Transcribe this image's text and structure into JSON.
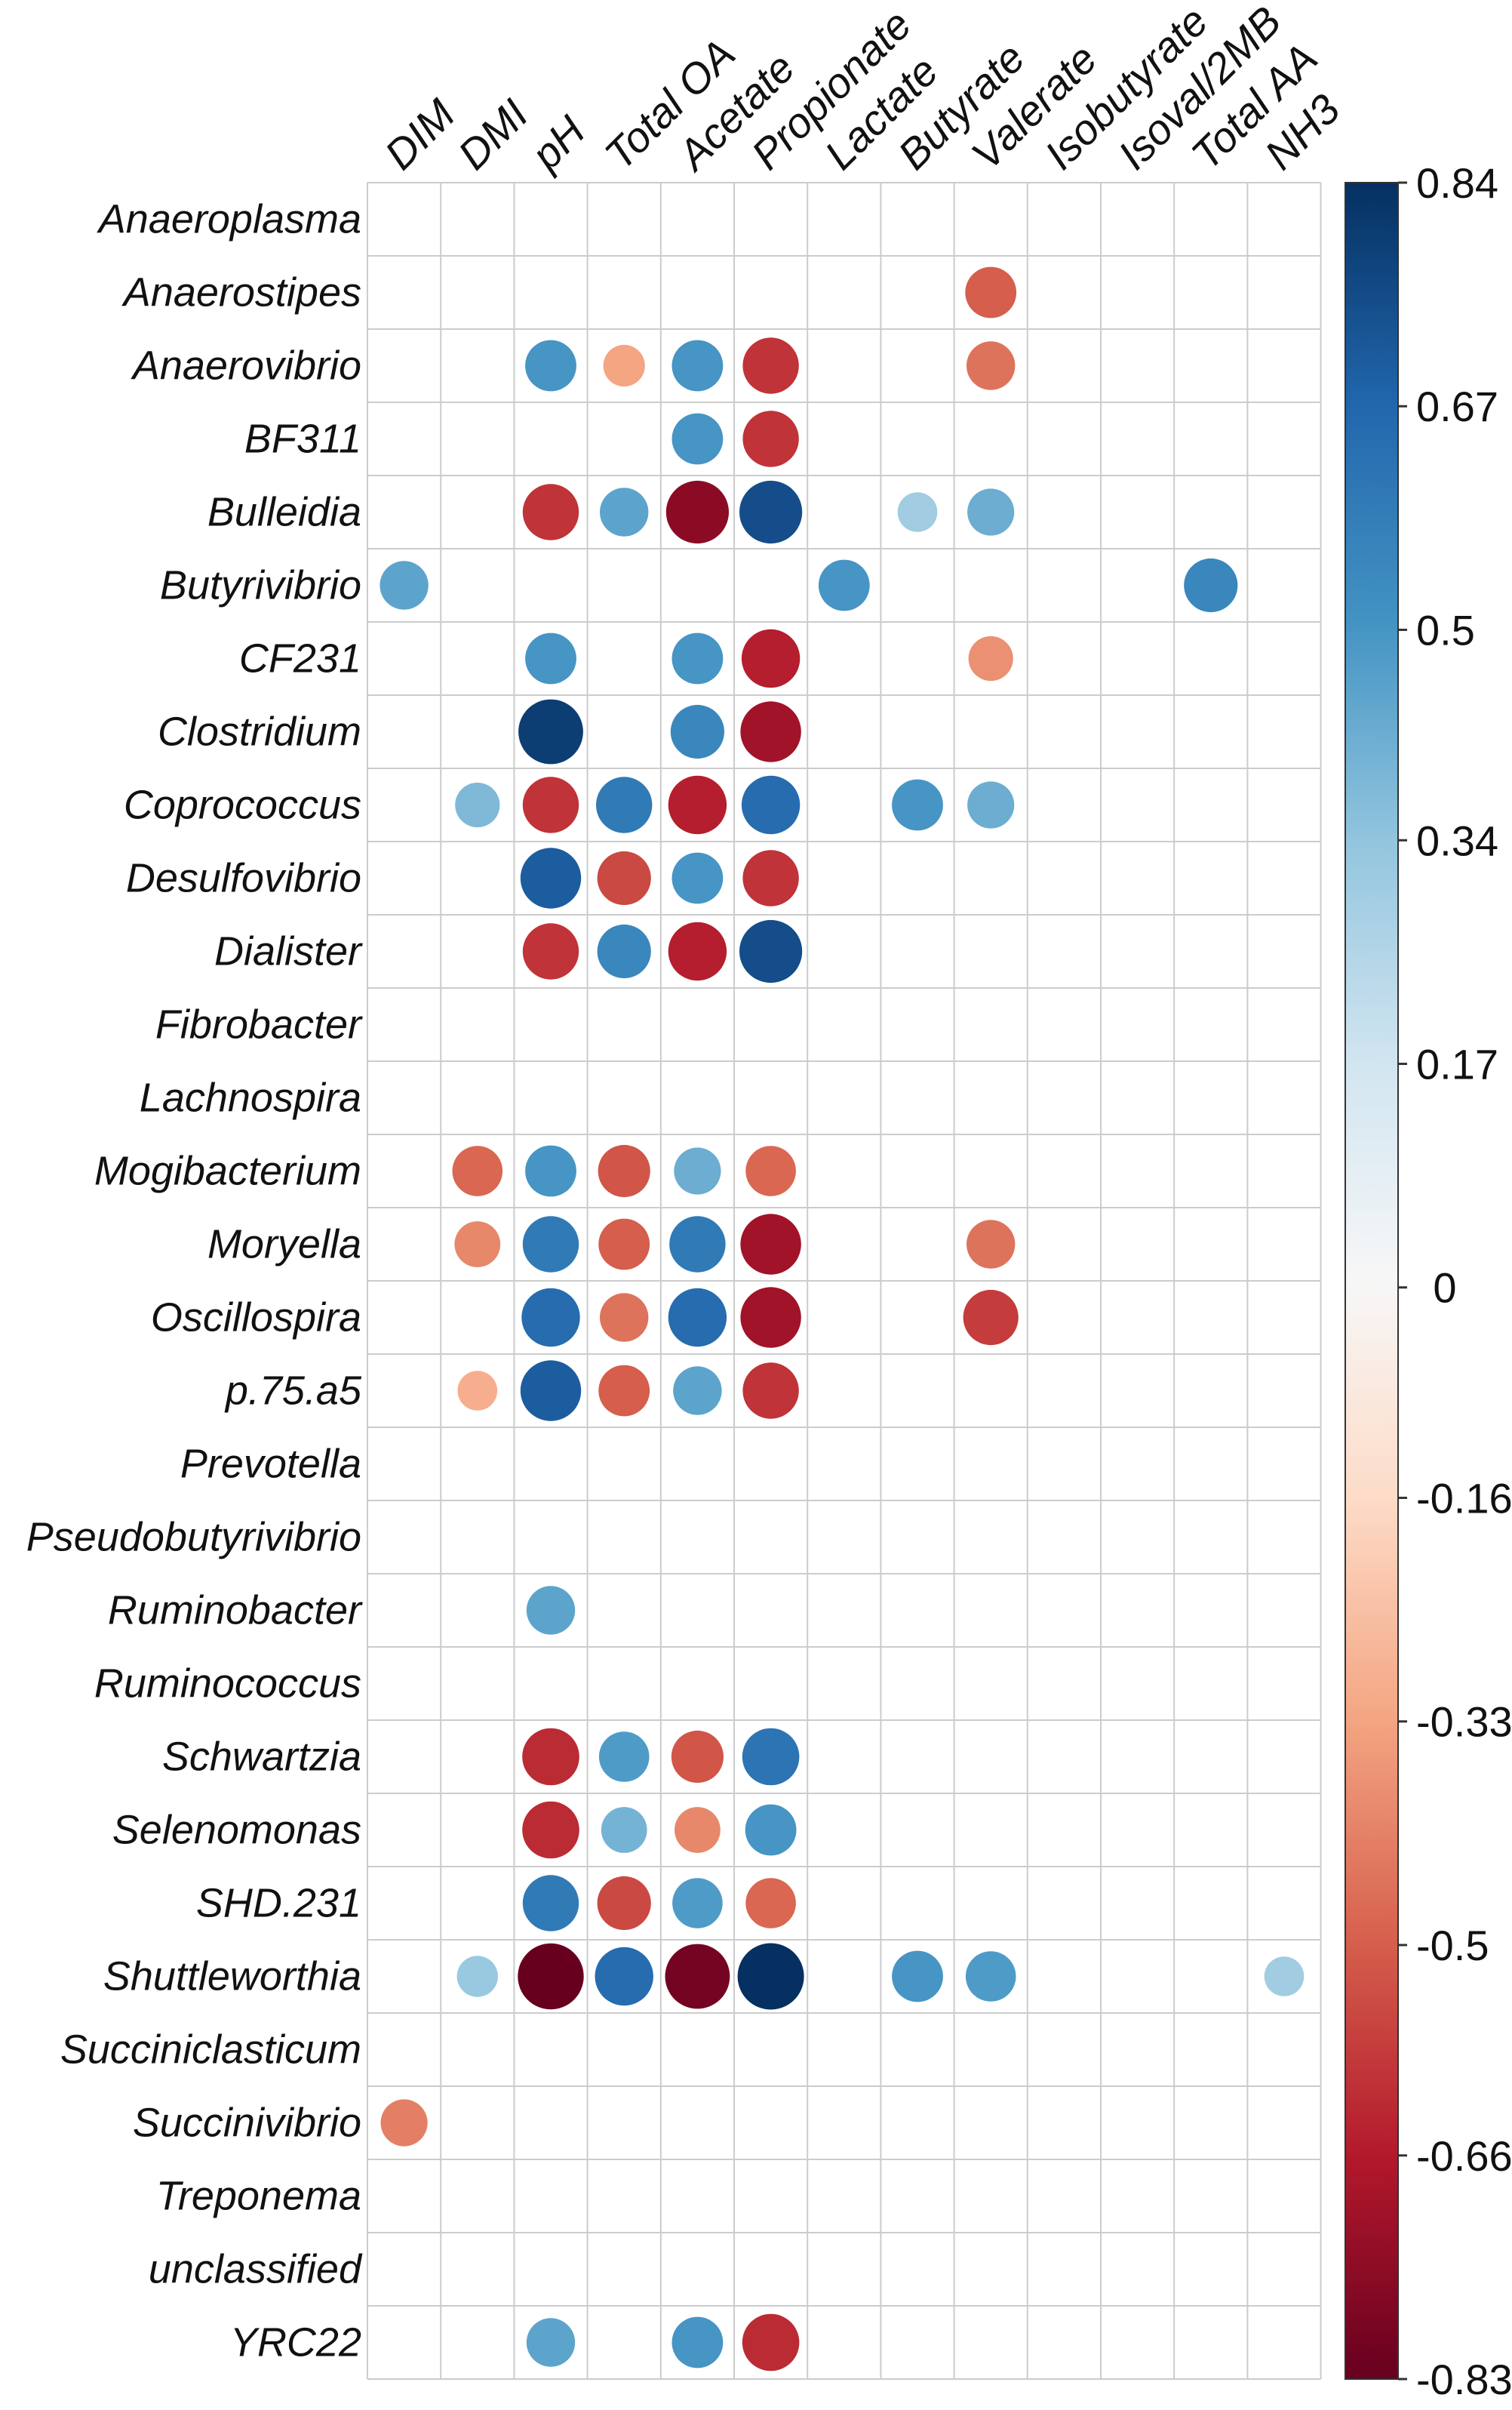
{
  "chart_data": {
    "type": "heatmap",
    "subtype": "correlation-circles",
    "title": "",
    "columns": [
      "DIM",
      "DMI",
      "pH",
      "Total OA",
      "Acetate",
      "Propionate",
      "Lactate",
      "Butyrate",
      "Valerate",
      "Isobutyrate",
      "Isoval/2MB",
      "Total AA",
      "NH3"
    ],
    "rows": [
      "Anaeroplasma",
      "Anaerostipes",
      "Anaerovibrio",
      "BF311",
      "Bulleidia",
      "Butyrivibrio",
      "CF231",
      "Clostridium",
      "Coprococcus",
      "Desulfovibrio",
      "Dialister",
      "Fibrobacter",
      "Lachnospira",
      "Mogibacterium",
      "Moryella",
      "Oscillospira",
      "p.75.a5",
      "Prevotella",
      "Pseudobutyrivibrio",
      "Ruminobacter",
      "Ruminococcus",
      "Schwartzia",
      "Selenomonas",
      "SHD.231",
      "Shuttleworthia",
      "Succiniclasticum",
      "Succinivibrio",
      "Treponema",
      "unclassified",
      "YRC22"
    ],
    "values": [
      [
        null,
        null,
        null,
        null,
        null,
        null,
        null,
        null,
        null,
        null,
        null,
        null,
        null
      ],
      [
        null,
        null,
        null,
        null,
        null,
        null,
        null,
        null,
        -0.5,
        null,
        null,
        null,
        null
      ],
      [
        null,
        null,
        0.5,
        -0.33,
        0.5,
        -0.6,
        null,
        null,
        -0.45,
        null,
        null,
        null,
        null
      ],
      [
        null,
        null,
        null,
        null,
        0.5,
        -0.6,
        null,
        null,
        null,
        null,
        null,
        null,
        null
      ],
      [
        null,
        null,
        -0.6,
        0.45,
        -0.75,
        0.75,
        null,
        0.3,
        0.42,
        null,
        null,
        null,
        null
      ],
      [
        0.45,
        null,
        null,
        null,
        null,
        null,
        0.5,
        null,
        null,
        null,
        null,
        0.55,
        null
      ],
      [
        null,
        null,
        0.5,
        null,
        0.5,
        -0.65,
        null,
        null,
        -0.38,
        null,
        null,
        null,
        null
      ],
      [
        null,
        null,
        0.8,
        null,
        0.55,
        -0.7,
        null,
        null,
        null,
        null,
        null,
        null,
        null
      ],
      [
        null,
        0.38,
        -0.6,
        0.6,
        -0.65,
        0.65,
        null,
        0.5,
        0.42,
        null,
        null,
        null,
        null
      ],
      [
        null,
        null,
        0.7,
        -0.55,
        0.5,
        -0.6,
        null,
        null,
        null,
        null,
        null,
        null,
        null
      ],
      [
        null,
        null,
        -0.6,
        0.55,
        -0.65,
        0.75,
        null,
        null,
        null,
        null,
        null,
        null,
        null
      ],
      [
        null,
        null,
        null,
        null,
        null,
        null,
        null,
        null,
        null,
        null,
        null,
        null,
        null
      ],
      [
        null,
        null,
        null,
        null,
        null,
        null,
        null,
        null,
        null,
        null,
        null,
        null,
        null
      ],
      [
        null,
        -0.48,
        0.5,
        -0.52,
        0.42,
        -0.48,
        null,
        null,
        null,
        null,
        null,
        null,
        null
      ],
      [
        null,
        -0.4,
        0.6,
        -0.5,
        0.6,
        -0.7,
        null,
        null,
        -0.45,
        null,
        null,
        null,
        null
      ],
      [
        null,
        null,
        0.65,
        -0.45,
        0.65,
        -0.7,
        null,
        null,
        -0.58,
        null,
        null,
        null,
        null
      ],
      [
        null,
        -0.3,
        0.7,
        -0.5,
        0.45,
        -0.6,
        null,
        null,
        null,
        null,
        null,
        null,
        null
      ],
      [
        null,
        null,
        null,
        null,
        null,
        null,
        null,
        null,
        null,
        null,
        null,
        null,
        null
      ],
      [
        null,
        null,
        null,
        null,
        null,
        null,
        null,
        null,
        null,
        null,
        null,
        null,
        null
      ],
      [
        null,
        null,
        0.45,
        null,
        null,
        null,
        null,
        null,
        null,
        null,
        null,
        null,
        null
      ],
      [
        null,
        null,
        null,
        null,
        null,
        null,
        null,
        null,
        null,
        null,
        null,
        null,
        null
      ],
      [
        null,
        null,
        -0.62,
        0.48,
        -0.52,
        0.62,
        null,
        null,
        null,
        null,
        null,
        null,
        null
      ],
      [
        null,
        null,
        -0.62,
        0.4,
        -0.4,
        0.5,
        null,
        null,
        null,
        null,
        null,
        null,
        null
      ],
      [
        null,
        null,
        0.6,
        -0.55,
        0.48,
        -0.48,
        null,
        null,
        null,
        null,
        null,
        null,
        null
      ],
      [
        null,
        0.32,
        -0.83,
        0.65,
        -0.8,
        0.84,
        null,
        0.5,
        0.48,
        null,
        null,
        null,
        0.3
      ],
      [
        null,
        null,
        null,
        null,
        null,
        null,
        null,
        null,
        null,
        null,
        null,
        null,
        null
      ],
      [
        -0.42,
        null,
        null,
        null,
        null,
        null,
        null,
        null,
        null,
        null,
        null,
        null,
        null
      ],
      [
        null,
        null,
        null,
        null,
        null,
        null,
        null,
        null,
        null,
        null,
        null,
        null,
        null
      ],
      [
        null,
        null,
        null,
        null,
        null,
        null,
        null,
        null,
        null,
        null,
        null,
        null,
        null
      ],
      [
        null,
        null,
        0.45,
        null,
        0.5,
        -0.62,
        null,
        null,
        null,
        null,
        null,
        null,
        null
      ]
    ],
    "colorbar": {
      "min": -0.83,
      "max": 0.84,
      "ticks": [
        "0.84",
        "0.67",
        "0.5",
        "0.34",
        "0.17",
        "0",
        "-0.16",
        "-0.33",
        "-0.5",
        "-0.66",
        "-0.83"
      ],
      "colors": [
        "#67001f",
        "#b2182b",
        "#d6604d",
        "#f4a582",
        "#fddbc7",
        "#f7f7f7",
        "#d1e5f0",
        "#92c5de",
        "#4393c3",
        "#2166ac",
        "#053061"
      ]
    },
    "grid": true,
    "legend": "right"
  }
}
